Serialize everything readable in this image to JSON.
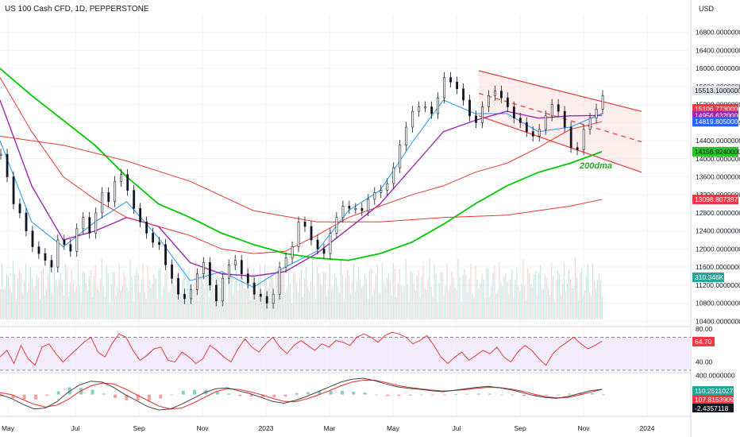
{
  "header": {
    "title": "US 100 Cash CFD, 1D, PEPPERSTONE",
    "currency": "USD"
  },
  "colors": {
    "price_line": "#131722",
    "ma_blue": "#2196f3",
    "ma_purple": "#9c27b0",
    "ma_red": "#e53935",
    "ma_green": "#00c800",
    "channel": "#e53935",
    "rsi": "#e53935",
    "rsi_band": "#ede4fb",
    "volume": "#b7dcd7",
    "macd_signal": "#e53935",
    "macd_line": "#444444"
  },
  "annotations": {
    "dma_label": "200dma"
  },
  "chart_data": [
    {
      "type": "line",
      "panel": "price",
      "x_axis": [
        "May",
        "Jul",
        "Sep",
        "Nov",
        "2023",
        "Mar",
        "May",
        "Jul",
        "Sep",
        "Nov",
        "2024"
      ],
      "y_ticks": [
        "16800.0000000",
        "16400.0000000",
        "16000.0000000",
        "15600.0000000",
        "15200.0000000",
        "14800.0000000",
        "14400.0000000",
        "14000.0000000",
        "13600.0000000",
        "13200.0000000",
        "12800.0000000",
        "12400.0000000",
        "12000.0000000",
        "11600.0000000",
        "11200.0000000",
        "10800.0000000",
        "10400.0000000"
      ],
      "ylim": [
        10300,
        17200
      ],
      "grid": true,
      "series": [
        {
          "role": "price",
          "x": [
            0,
            4,
            8,
            12,
            16,
            20,
            24,
            28,
            32,
            36,
            40,
            44,
            48,
            52,
            56,
            60,
            64,
            68,
            72,
            76,
            80,
            84,
            88,
            92,
            96,
            100,
            104,
            108,
            112,
            116,
            120,
            124,
            128,
            132,
            136,
            140,
            144,
            148,
            152,
            156,
            160,
            164,
            168,
            172,
            176,
            180,
            184,
            188,
            192,
            196,
            200,
            204,
            208,
            212,
            216,
            220,
            224,
            228,
            232,
            236,
            240,
            244,
            248,
            252,
            256,
            260,
            264,
            268,
            272,
            276,
            280,
            284,
            288,
            292,
            296,
            300,
            304,
            308,
            312,
            316,
            320,
            324,
            328,
            332,
            336,
            340,
            344,
            348,
            352,
            356,
            360,
            364,
            368,
            372,
            376,
            380
          ],
          "values": [
            14100,
            13600,
            13000,
            12800,
            12400,
            12050,
            11900,
            11750,
            11600,
            12200,
            12100,
            11950,
            12450,
            12700,
            12350,
            12800,
            13250,
            13050,
            13500,
            13650,
            13300,
            12900,
            12600,
            12350,
            12150,
            12100,
            11650,
            11350,
            11000,
            10900,
            11100,
            11450,
            11700,
            11200,
            10850,
            11350,
            11650,
            11750,
            11450,
            11250,
            11000,
            10950,
            10800,
            11000,
            11600,
            11800,
            12050,
            12600,
            12500,
            12200,
            12000,
            11900,
            12350,
            12700,
            12950,
            12900,
            12900,
            12850,
            13100,
            13250,
            13300,
            13450,
            13800,
            14300,
            14700,
            15050,
            15150,
            15150,
            15000,
            15350,
            15800,
            15700,
            15550,
            15300,
            14950,
            14800,
            15150,
            15400,
            15500,
            15350,
            15150,
            14900,
            14800,
            14600,
            14500,
            14650,
            14950,
            15200,
            15050,
            14700,
            14250,
            14200,
            14650,
            14900,
            15100,
            15400
          ]
        },
        {
          "role": "ma_fast",
          "x": [
            0,
            20,
            40,
            60,
            80,
            100,
            120,
            140,
            160,
            180,
            200,
            220,
            240,
            260,
            280,
            300,
            320,
            340,
            360,
            380
          ],
          "values": [
            14400,
            12600,
            12050,
            12600,
            13050,
            12250,
            11300,
            11500,
            11150,
            11600,
            11950,
            12850,
            13300,
            14350,
            15300,
            15000,
            15000,
            14600,
            14700,
            15000
          ]
        },
        {
          "role": "ma_mid",
          "x": [
            0,
            20,
            40,
            60,
            80,
            100,
            120,
            140,
            160,
            180,
            200,
            220,
            240,
            260,
            280,
            300,
            320,
            340,
            360,
            380
          ],
          "values": [
            15300,
            13400,
            12200,
            12400,
            12700,
            12500,
            11700,
            11450,
            11400,
            11500,
            11900,
            12450,
            13000,
            13800,
            14600,
            14850,
            15050,
            14900,
            14950,
            14960
          ]
        },
        {
          "role": "ma_slow",
          "x": [
            0,
            20,
            40,
            60,
            80,
            100,
            120,
            140,
            160,
            180,
            200,
            220,
            240,
            260,
            280,
            300,
            320,
            340,
            360,
            380
          ],
          "values": [
            15800,
            14600,
            13600,
            13100,
            12700,
            12500,
            12300,
            12000,
            11900,
            11950,
            12300,
            12700,
            12950,
            13200,
            13400,
            13700,
            13900,
            14250,
            14650,
            14820
          ]
        },
        {
          "role": "ma_200",
          "x": [
            0,
            20,
            40,
            60,
            80,
            100,
            120,
            140,
            160,
            180,
            200,
            220,
            240,
            260,
            280,
            300,
            320,
            340,
            360,
            380
          ],
          "values": [
            16000,
            15400,
            14850,
            14300,
            13600,
            13000,
            12700,
            12350,
            12100,
            11900,
            11800,
            11750,
            11900,
            12150,
            12550,
            13000,
            13400,
            13700,
            13900,
            14157
          ]
        },
        {
          "role": "ma_long",
          "x": [
            0,
            40,
            80,
            120,
            160,
            200,
            240,
            280,
            320,
            360,
            380
          ],
          "values": [
            14500,
            14300,
            13950,
            13500,
            12850,
            12600,
            12600,
            12700,
            12750,
            12950,
            13099
          ]
        }
      ],
      "channel": {
        "upper": [
          [
            300,
            15950
          ],
          [
            405,
            15050
          ]
        ],
        "lower": [
          [
            300,
            14950
          ],
          [
            405,
            13700
          ]
        ],
        "mid": [
          [
            300,
            15450
          ],
          [
            405,
            14375
          ]
        ]
      },
      "price_labels": [
        "15513.1000000",
        "15106.7730000",
        "14956.6320000",
        "14819.8050000",
        "14156.9240000",
        "13098.8073973",
        "310.346K"
      ]
    },
    {
      "type": "bar",
      "panel": "volume",
      "label": "310.346K"
    },
    {
      "type": "line",
      "panel": "rsi",
      "y_ticks": [
        "80.00",
        "40.00"
      ],
      "ylim": [
        28,
        82
      ],
      "last_label": "64.70",
      "values": [
        46,
        54,
        38,
        60,
        44,
        36,
        58,
        62,
        50,
        40,
        48,
        56,
        64,
        70,
        52,
        46,
        62,
        74,
        70,
        54,
        42,
        48,
        56,
        58,
        42,
        40,
        52,
        46,
        38,
        44,
        60,
        54,
        46,
        40,
        56,
        68,
        58,
        52,
        62,
        70,
        58,
        50,
        60,
        66,
        60,
        54,
        62,
        58,
        66,
        64,
        60,
        70,
        74,
        70,
        64,
        72,
        76,
        74,
        70,
        62,
        66,
        72,
        60,
        46,
        38,
        46,
        52,
        42,
        48,
        54,
        50,
        58,
        46,
        40,
        52,
        60,
        54,
        44,
        36,
        50,
        58,
        64,
        70,
        62,
        56,
        60,
        65
      ]
    },
    {
      "type": "line",
      "panel": "macd",
      "y_ticks": [
        "400.0000000"
      ],
      "last_labels": [
        "110.2511027",
        "107.8153909",
        "-2.4357118"
      ],
      "macd": [
        0,
        -80,
        -200,
        -300,
        -280,
        -150,
        50,
        200,
        280,
        260,
        150,
        0,
        -120,
        -250,
        -320,
        -300,
        -200,
        -80,
        40,
        120,
        140,
        80,
        20,
        -60,
        -140,
        -180,
        -120,
        -40,
        60,
        160,
        260,
        320,
        340,
        290,
        220,
        160,
        130,
        110,
        80,
        60,
        90,
        120,
        150,
        170,
        140,
        100,
        40,
        -20,
        -60,
        -80,
        -40,
        20,
        80,
        110
      ],
      "signal": [
        40,
        0,
        -100,
        -200,
        -260,
        -220,
        -100,
        60,
        180,
        240,
        220,
        120,
        0,
        -120,
        -240,
        -300,
        -280,
        -180,
        -60,
        60,
        120,
        110,
        60,
        0,
        -80,
        -140,
        -150,
        -90,
        -10,
        80,
        180,
        260,
        300,
        300,
        250,
        190,
        150,
        120,
        95,
        75,
        85,
        105,
        130,
        150,
        145,
        115,
        70,
        10,
        -40,
        -70,
        -60,
        -10,
        50,
        108
      ]
    }
  ]
}
